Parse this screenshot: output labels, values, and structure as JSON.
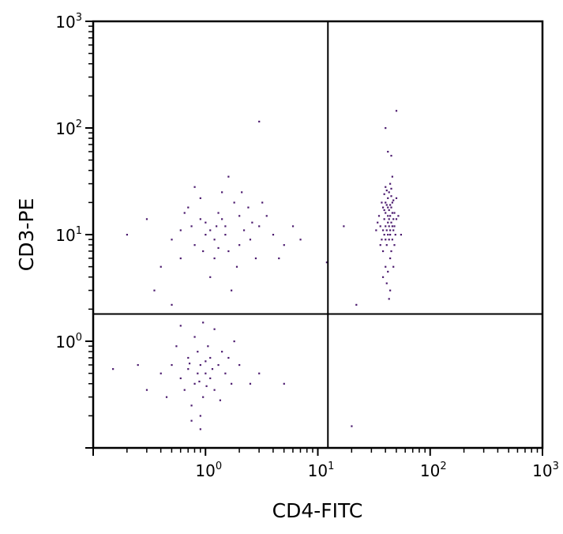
{
  "chart_data": {
    "type": "scatter",
    "title": "",
    "xlabel": "CD4-FITC",
    "ylabel": "CD3-PE",
    "xscale": "log",
    "yscale": "log",
    "xlim": [
      0.1,
      1000
    ],
    "ylim": [
      0.1,
      1000
    ],
    "grid": false,
    "legend": "none",
    "point_color": "#4b1a6e",
    "quadrant_gates": {
      "x": 12.3,
      "y": 1.8
    },
    "x_ticks": [
      {
        "value": 1,
        "base": "10",
        "exp": "0"
      },
      {
        "value": 10,
        "base": "10",
        "exp": "1"
      },
      {
        "value": 100,
        "base": "10",
        "exp": "2"
      },
      {
        "value": 1000,
        "base": "10",
        "exp": "3"
      }
    ],
    "y_ticks": [
      {
        "value": 1,
        "base": "10",
        "exp": "0"
      },
      {
        "value": 10,
        "base": "10",
        "exp": "1"
      },
      {
        "value": 100,
        "base": "10",
        "exp": "2"
      },
      {
        "value": 1000,
        "base": "10",
        "exp": "3"
      }
    ],
    "points": [
      [
        40,
        12
      ],
      [
        42,
        15
      ],
      [
        44,
        10
      ],
      [
        38,
        18
      ],
      [
        46,
        20
      ],
      [
        41,
        8
      ],
      [
        43,
        25
      ],
      [
        39,
        14
      ],
      [
        45,
        13
      ],
      [
        47,
        11
      ],
      [
        37,
        9
      ],
      [
        48,
        16
      ],
      [
        42,
        22
      ],
      [
        44,
        6
      ],
      [
        40,
        28
      ],
      [
        36,
        12
      ],
      [
        50,
        14
      ],
      [
        43,
        17
      ],
      [
        41,
        19
      ],
      [
        45,
        7
      ],
      [
        39,
        24
      ],
      [
        46,
        9
      ],
      [
        38,
        11
      ],
      [
        42,
        13
      ],
      [
        44,
        15
      ],
      [
        40,
        5
      ],
      [
        47,
        21
      ],
      [
        35,
        15
      ],
      [
        49,
        10
      ],
      [
        43,
        12
      ],
      [
        41,
        26
      ],
      [
        45,
        18
      ],
      [
        37,
        20
      ],
      [
        48,
        8
      ],
      [
        42,
        4.5
      ],
      [
        44,
        30
      ],
      [
        40,
        16
      ],
      [
        46,
        12
      ],
      [
        39,
        10
      ],
      [
        43,
        9
      ],
      [
        52,
        15
      ],
      [
        34,
        13
      ],
      [
        45,
        23
      ],
      [
        41,
        11
      ],
      [
        47,
        14
      ],
      [
        38,
        7
      ],
      [
        44,
        19
      ],
      [
        42,
        10
      ],
      [
        40,
        20
      ],
      [
        46,
        16
      ],
      [
        36,
        8
      ],
      [
        50,
        22
      ],
      [
        43,
        14
      ],
      [
        41,
        3.5
      ],
      [
        45,
        27
      ],
      [
        39,
        17
      ],
      [
        48,
        12
      ],
      [
        42,
        18
      ],
      [
        44,
        11
      ],
      [
        40,
        9
      ],
      [
        55,
        10
      ],
      [
        33,
        11
      ],
      [
        42,
        60
      ],
      [
        40,
        100
      ],
      [
        45,
        55
      ],
      [
        44,
        3
      ],
      [
        43,
        2.5
      ],
      [
        47,
        5
      ],
      [
        38,
        4
      ],
      [
        46,
        35
      ],
      [
        3,
        115
      ],
      [
        50,
        145
      ],
      [
        20,
        0.16
      ],
      [
        12,
        5.5
      ],
      [
        22,
        2.2
      ],
      [
        17,
        12
      ],
      [
        1,
        10
      ],
      [
        1.5,
        12
      ],
      [
        0.8,
        8
      ],
      [
        2,
        15
      ],
      [
        1.2,
        6
      ],
      [
        0.6,
        11
      ],
      [
        2.5,
        9
      ],
      [
        1.8,
        20
      ],
      [
        0.9,
        14
      ],
      [
        3,
        12
      ],
      [
        1.1,
        4
      ],
      [
        0.7,
        18
      ],
      [
        1.6,
        7
      ],
      [
        2.2,
        11
      ],
      [
        0.5,
        9
      ],
      [
        1.3,
        16
      ],
      [
        4,
        10
      ],
      [
        0.4,
        5
      ],
      [
        1.4,
        25
      ],
      [
        2.8,
        6
      ],
      [
        0.3,
        14
      ],
      [
        5,
        8
      ],
      [
        1.7,
        3
      ],
      [
        0.9,
        22
      ],
      [
        2,
        8
      ],
      [
        1,
        13
      ],
      [
        1.2,
        9
      ],
      [
        3.5,
        15
      ],
      [
        0.6,
        6
      ],
      [
        1.9,
        5
      ],
      [
        0.8,
        28
      ],
      [
        2.4,
        18
      ],
      [
        1.5,
        10
      ],
      [
        6,
        12
      ],
      [
        0.35,
        3
      ],
      [
        1.1,
        11
      ],
      [
        2.6,
        13
      ],
      [
        0.75,
        12
      ],
      [
        1.3,
        7.5
      ],
      [
        4.5,
        6
      ],
      [
        0.2,
        10
      ],
      [
        1.6,
        35
      ],
      [
        7,
        9
      ],
      [
        0.5,
        2.2
      ],
      [
        1.4,
        14
      ],
      [
        3.2,
        20
      ],
      [
        0.95,
        7
      ],
      [
        2.1,
        25
      ],
      [
        0.65,
        16
      ],
      [
        1.25,
        12
      ],
      [
        0.9,
        0.6
      ],
      [
        1,
        0.5
      ],
      [
        0.8,
        0.4
      ],
      [
        1.1,
        0.7
      ],
      [
        0.7,
        0.55
      ],
      [
        1.2,
        0.35
      ],
      [
        0.85,
        0.8
      ],
      [
        0.95,
        0.3
      ],
      [
        0.6,
        0.45
      ],
      [
        1.3,
        0.6
      ],
      [
        0.75,
        0.25
      ],
      [
        1.05,
        0.9
      ],
      [
        0.9,
        0.2
      ],
      [
        1.5,
        0.5
      ],
      [
        0.5,
        0.6
      ],
      [
        0.8,
        1.1
      ],
      [
        1.1,
        0.45
      ],
      [
        0.65,
        0.35
      ],
      [
        1.4,
        0.8
      ],
      [
        0.9,
        0.15
      ],
      [
        0.7,
        0.7
      ],
      [
        1.7,
        0.4
      ],
      [
        0.45,
        0.3
      ],
      [
        1.2,
        1.3
      ],
      [
        1,
        0.65
      ],
      [
        0.85,
        0.5
      ],
      [
        2,
        0.6
      ],
      [
        0.55,
        0.9
      ],
      [
        1.35,
        0.28
      ],
      [
        0.95,
        1.5
      ],
      [
        0.4,
        0.5
      ],
      [
        1.6,
        0.7
      ],
      [
        0.75,
        0.18
      ],
      [
        2.5,
        0.4
      ],
      [
        0.3,
        0.35
      ],
      [
        1.15,
        0.55
      ],
      [
        3,
        0.5
      ],
      [
        0.6,
        1.4
      ],
      [
        0.25,
        0.6
      ],
      [
        1.8,
        1
      ],
      [
        0.15,
        0.55
      ],
      [
        5,
        0.4
      ],
      [
        0.88,
        0.42
      ],
      [
        1.02,
        0.38
      ],
      [
        0.72,
        0.62
      ]
    ]
  }
}
